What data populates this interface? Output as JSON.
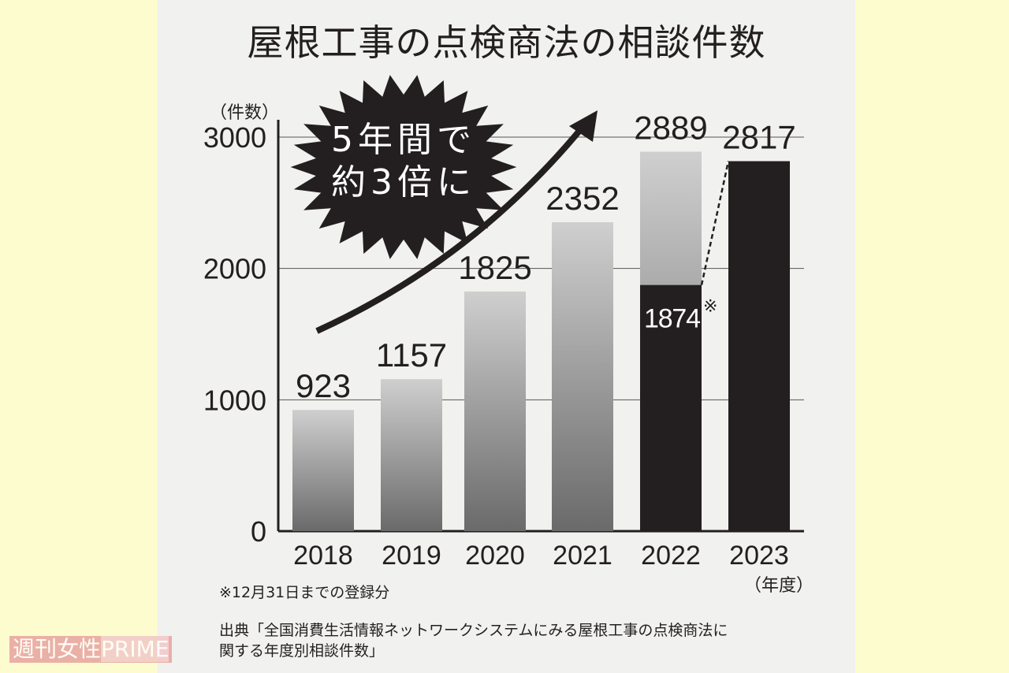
{
  "title": "屋根工事の点検商法の相談件数",
  "burst_text": [
    "5年間で",
    "約3倍に"
  ],
  "footnote": "※12月31日までの登録分",
  "source": [
    "出典「全国消費生活情報ネットワークシステムにみる屋根工事の点検商法に",
    "関する年度別相談件数」"
  ],
  "watermark": [
    "週刊女性",
    "PRIME"
  ],
  "chart_data": {
    "type": "bar",
    "title": "屋根工事の点検商法の相談件数",
    "ylabel": "（件数）",
    "xlabel": "（年度）",
    "ylim": [
      0,
      3000
    ],
    "yticks": [
      "0",
      "1000",
      "2000",
      "3000"
    ],
    "grid": true,
    "categories": [
      "2018",
      "2019",
      "2020",
      "2021",
      "2022",
      "2023"
    ],
    "values": [
      923,
      1157,
      1825,
      2352,
      2889,
      2817
    ],
    "labels": [
      "923",
      "1157",
      "1825",
      "2352",
      "2889",
      "2817"
    ],
    "highlight": {
      "category": "2022",
      "value": 1874,
      "label": "1874",
      "mark": "※"
    },
    "colors": {
      "gray_top": "#cfcfcf",
      "gray_bottom": "#6b6a6a",
      "black": "#231f20"
    }
  }
}
